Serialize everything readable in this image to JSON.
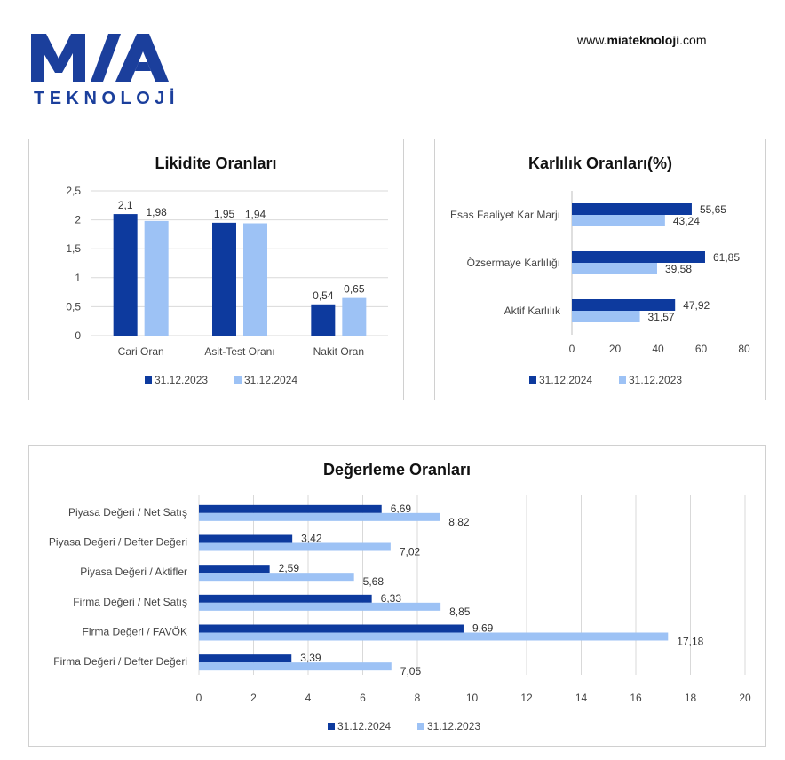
{
  "header": {
    "logo_main": "MIA",
    "logo_sub": "TEKNOLOJİ",
    "website_prefix": "www.",
    "website_brand": "miateknoloji",
    "website_suffix": ".com"
  },
  "colors": {
    "dark": "#0d3a9e",
    "light": "#9dc2f5",
    "brand": "#1b3f9c"
  },
  "chart_data": [
    {
      "type": "bar",
      "title": "Likidite Oranları",
      "categories": [
        "Cari Oran",
        "Asit-Test Oranı",
        "Nakit Oran"
      ],
      "series": [
        {
          "name": "31.12.2023",
          "values": [
            2.1,
            1.95,
            0.54
          ],
          "labels": [
            "2,1",
            "1,95",
            "0,54"
          ]
        },
        {
          "name": "31.12.2024",
          "values": [
            1.98,
            1.94,
            0.65
          ],
          "labels": [
            "1,98",
            "1,94",
            "0,65"
          ]
        }
      ],
      "ylim": [
        0,
        2.5
      ],
      "yticks": [
        "0",
        "0,5",
        "1",
        "1,5",
        "2",
        "2,5"
      ],
      "grid": true,
      "legend": "bottom"
    },
    {
      "type": "bar",
      "orientation": "horizontal",
      "title": "Karlılık Oranları(%)",
      "categories": [
        "Esas Faaliyet Kar Marjı",
        "Özsermaye Karlılığı",
        "Aktif Karlılık"
      ],
      "series": [
        {
          "name": "31.12.2024",
          "values": [
            55.65,
            61.85,
            47.92
          ],
          "labels": [
            "55,65",
            "61,85",
            "47,92"
          ]
        },
        {
          "name": "31.12.2023",
          "values": [
            43.24,
            39.58,
            31.57
          ],
          "labels": [
            "43,24",
            "39,58",
            "31,57"
          ]
        }
      ],
      "xlim": [
        0,
        80
      ],
      "xticks": [
        "0",
        "20",
        "40",
        "60",
        "80"
      ],
      "grid": false,
      "legend": "bottom"
    },
    {
      "type": "bar",
      "orientation": "horizontal",
      "title": "Değerleme Oranları",
      "categories": [
        "Piyasa Değeri / Net Satış",
        "Piyasa Değeri / Defter Değeri",
        "Piyasa Değeri / Aktifler",
        "Firma Değeri / Net Satış",
        "Firma Değeri / FAVÖK",
        "Firma Değeri / Defter Değeri"
      ],
      "series": [
        {
          "name": "31.12.2024",
          "values": [
            6.69,
            3.42,
            2.59,
            6.33,
            9.69,
            3.39
          ],
          "labels": [
            "6,69",
            "3,42",
            "2,59",
            "6,33",
            "9,69",
            "3,39"
          ]
        },
        {
          "name": "31.12.2023",
          "values": [
            8.82,
            7.02,
            5.68,
            8.85,
            17.18,
            7.05
          ],
          "labels": [
            "8,82",
            "7,02",
            "5,68",
            "8,85",
            "17,18",
            "7,05"
          ]
        }
      ],
      "xlim": [
        0,
        20
      ],
      "xticks": [
        "0",
        "2",
        "4",
        "6",
        "8",
        "10",
        "12",
        "14",
        "16",
        "18",
        "20"
      ],
      "grid": true,
      "legend": "bottom"
    }
  ]
}
